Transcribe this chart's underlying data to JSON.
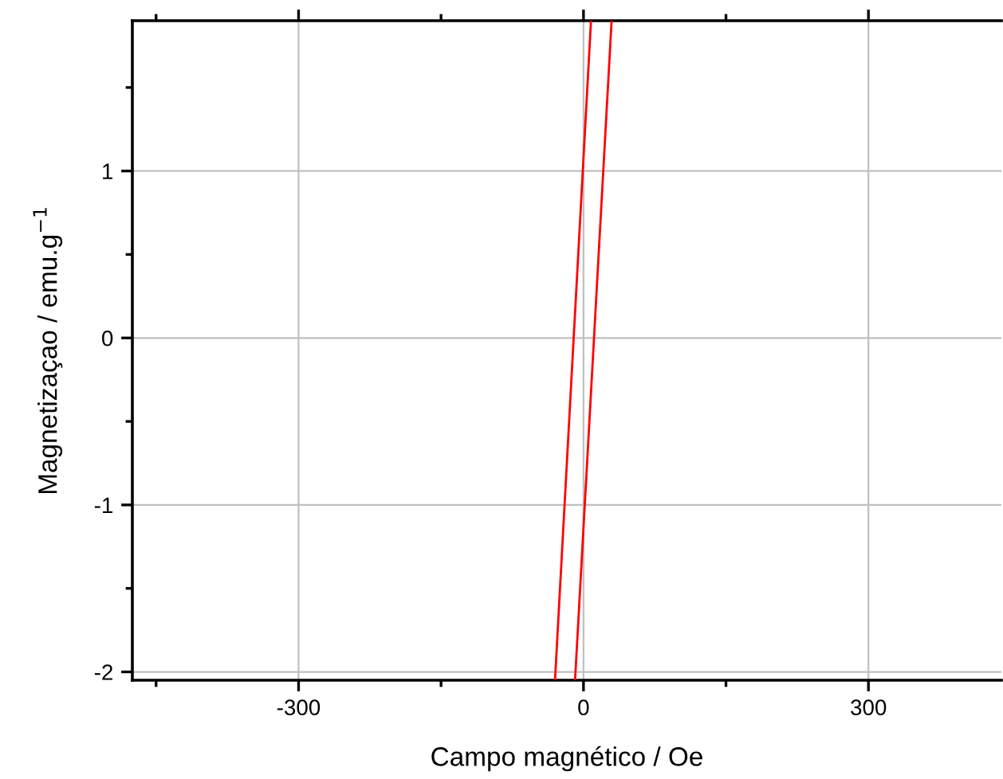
{
  "chart_data": {
    "type": "line",
    "xlabel": "Campo magnético / Oe",
    "ylabel": "Magnetizaçao / emu.g$^{−1}$",
    "series": [
      {
        "color": "#ff0000",
        "x": [
          -30,
          7.9
        ],
        "values": [
          -2.05,
          1.9
        ]
      },
      {
        "color": "#ff0000",
        "x": [
          -8.9,
          29.6
        ],
        "values": [
          -2.05,
          1.9
        ]
      }
    ],
    "xlim": [
      -475,
      440
    ],
    "ylim": [
      -2.05,
      1.9
    ],
    "xticks": [
      {
        "value": -450,
        "label": null
      },
      -300,
      {
        "value": -150,
        "label": null
      },
      0,
      {
        "value": 150,
        "label": null
      },
      300
    ],
    "yticks": [
      -2,
      {
        "value": -1.5,
        "label": null
      },
      -1,
      {
        "value": -0.5,
        "label": null
      },
      0,
      {
        "value": 0.5,
        "label": null
      },
      1,
      {
        "value": 1.5,
        "label": null
      }
    ],
    "grid": true,
    "marker": "none",
    "line_style": "solid"
  }
}
